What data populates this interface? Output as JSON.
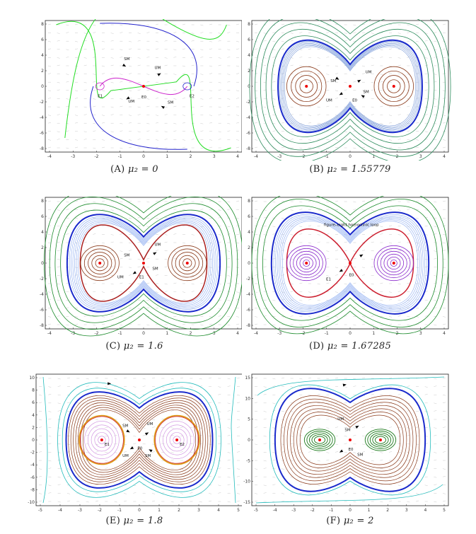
{
  "panels": [
    {
      "id": "a",
      "caption_tag": "(A)",
      "caption_eq": "μ₂ = 0",
      "xticks": [
        "-4",
        "-3",
        "-2",
        "-1",
        "0",
        "1",
        "2",
        "3",
        "4"
      ],
      "yticks": [
        "8",
        "6",
        "4",
        "2",
        "0",
        "-2",
        "-4",
        "-6",
        "-8"
      ],
      "labels": [
        "SM",
        "UM",
        "E0",
        "E1",
        "E2",
        "UM",
        "SM"
      ]
    },
    {
      "id": "b",
      "caption_tag": "(B)",
      "caption_eq": "μ₂ = 1.55779",
      "xticks": [
        "-4",
        "-3",
        "-2",
        "-1",
        "0",
        "1",
        "2",
        "3",
        "4"
      ],
      "yticks": [
        "8",
        "6",
        "4",
        "2",
        "0",
        "-2",
        "-4",
        "-6",
        "-8"
      ],
      "labels": [
        "SM",
        "UM",
        "E0",
        "UM",
        "SM"
      ]
    },
    {
      "id": "c",
      "caption_tag": "(C)",
      "caption_eq": "μ₂ = 1.6",
      "xticks": [
        "-4",
        "-3",
        "-2",
        "-1",
        "0",
        "1",
        "2",
        "3",
        "4"
      ],
      "yticks": [
        "8",
        "6",
        "4",
        "2",
        "0",
        "-2",
        "-4",
        "-6",
        "-8"
      ],
      "labels": [
        "SM",
        "UM",
        "E1",
        "UM",
        "SM"
      ]
    },
    {
      "id": "d",
      "caption_tag": "(D)",
      "caption_eq": "μ₂ = 1.67285",
      "xticks": [
        "-4",
        "-3",
        "-2",
        "-1",
        "0",
        "1",
        "2",
        "3",
        "4"
      ],
      "yticks": [
        "8",
        "6",
        "4",
        "2",
        "0",
        "-2",
        "-4",
        "-6",
        "-8"
      ],
      "labels": [
        "figure–eight homoclinic loop",
        "E0",
        "E1"
      ]
    },
    {
      "id": "e",
      "caption_tag": "(E)",
      "caption_eq": "μ₂ = 1.8",
      "xticks": [
        "-5",
        "-4",
        "-3",
        "-2",
        "-1",
        "0",
        "1",
        "2",
        "3",
        "4",
        "5"
      ],
      "yticks": [
        "10",
        "8",
        "6",
        "4",
        "2",
        "0",
        "-2",
        "-4",
        "-6",
        "-8",
        "-10"
      ],
      "labels": [
        "SM",
        "UM",
        "E1",
        "E0",
        "E2",
        "UM",
        "SM"
      ]
    },
    {
      "id": "f",
      "caption_tag": "(F)",
      "caption_eq": "μ₂ = 2",
      "xticks": [
        "-5",
        "-4",
        "-3",
        "-2",
        "-1",
        "0",
        "1",
        "2",
        "3",
        "4",
        "5"
      ],
      "yticks": [
        "15",
        "10",
        "5",
        "0",
        "-5",
        "-10",
        "-15"
      ],
      "labels": [
        "SM",
        "UM",
        "E0",
        "SM"
      ]
    }
  ]
}
